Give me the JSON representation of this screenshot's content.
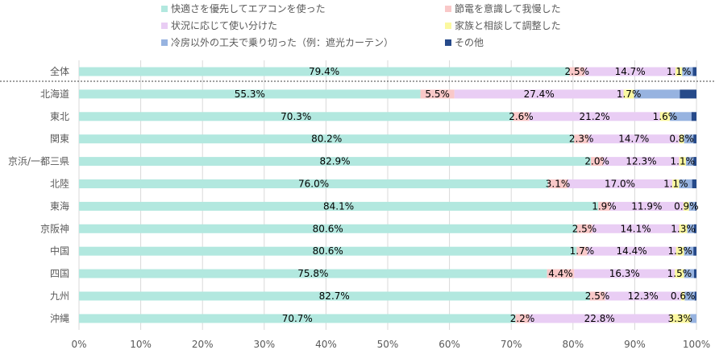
{
  "chart_data": {
    "type": "bar",
    "orientation": "horizontal",
    "stacked": "percent",
    "title": "",
    "xlabel": "",
    "ylabel": "",
    "xlim": [
      0,
      100
    ],
    "grid": true,
    "legend_position": "top",
    "x_ticks": [
      "0%",
      "10%",
      "20%",
      "30%",
      "40%",
      "50%",
      "60%",
      "70%",
      "80%",
      "90%",
      "100%"
    ],
    "categories": [
      "全体",
      "北海道",
      "東北",
      "関東",
      "京浜/一都三県",
      "北陸",
      "東海",
      "京阪神",
      "中国",
      "四国",
      "九州",
      "沖縄"
    ],
    "series": [
      {
        "name": "快適さを優先してエアコンを使った",
        "color": "#b2e8df",
        "values": [
          79.4,
          55.3,
          70.3,
          80.2,
          82.9,
          76.0,
          84.1,
          80.6,
          80.6,
          75.8,
          82.7,
          70.7
        ],
        "labels": [
          "79.4%",
          "55.3%",
          "70.3%",
          "80.2%",
          "82.9%",
          "76.0%",
          "84.1%",
          "80.6%",
          "80.6%",
          "75.8%",
          "82.7%",
          "70.7%"
        ]
      },
      {
        "name": "節電を意識して我慢した",
        "color": "#f9c8c8",
        "values": [
          2.5,
          5.5,
          2.6,
          2.3,
          2.0,
          3.1,
          1.9,
          2.5,
          1.7,
          4.4,
          2.5,
          2.2
        ],
        "labels": [
          "2.5%",
          "5.5%",
          "2.6%",
          "2.3%",
          "2.0%",
          "3.1%",
          "1.9%",
          "2.5%",
          "1.7%",
          "4.4%",
          "2.5%",
          "2.2%"
        ]
      },
      {
        "name": "状況に応じて使い分けた",
        "color": "#e9cdf4",
        "values": [
          14.7,
          27.4,
          21.2,
          14.7,
          12.3,
          17.0,
          11.9,
          14.1,
          14.4,
          16.3,
          12.3,
          22.8
        ],
        "labels": [
          "14.7%",
          "27.4%",
          "21.2%",
          "14.7%",
          "12.3%",
          "17.0%",
          "11.9%",
          "14.1%",
          "14.4%",
          "16.3%",
          "12.3%",
          "22.8%"
        ]
      },
      {
        "name": "家族と相談して調整した",
        "color": "#fbf8a0",
        "values": [
          1.1,
          1.7,
          1.6,
          0.8,
          1.1,
          1.1,
          0.9,
          1.3,
          1.3,
          1.5,
          0.6,
          3.3
        ],
        "labels": [
          "1.1%",
          "1.7%",
          "1.6%",
          "0.8%",
          "1.1%",
          "1.1%",
          "0.9%",
          "1.3%",
          "1.3%",
          "1.5%",
          "0.6%",
          "3.3%"
        ]
      },
      {
        "name": "冷房以外の工夫で乗り切った（例：遮光カーテン）",
        "color": "#97b3e0",
        "values": [
          1.7,
          7.4,
          3.5,
          1.5,
          1.2,
          2.1,
          1.0,
          1.1,
          1.5,
          1.6,
          1.6,
          1.0
        ],
        "labels": [
          "",
          "",
          "",
          "",
          "",
          "",
          "",
          "",
          "",
          "",
          "",
          ""
        ]
      },
      {
        "name": "その他",
        "color": "#264a8a",
        "values": [
          0.6,
          2.7,
          0.8,
          0.5,
          0.5,
          0.7,
          0.2,
          0.4,
          0.5,
          0.4,
          0.3,
          0.0
        ],
        "labels": [
          "",
          "",
          "",
          "",
          "",
          "",
          "",
          "",
          "",
          "",
          "",
          ""
        ]
      }
    ]
  }
}
